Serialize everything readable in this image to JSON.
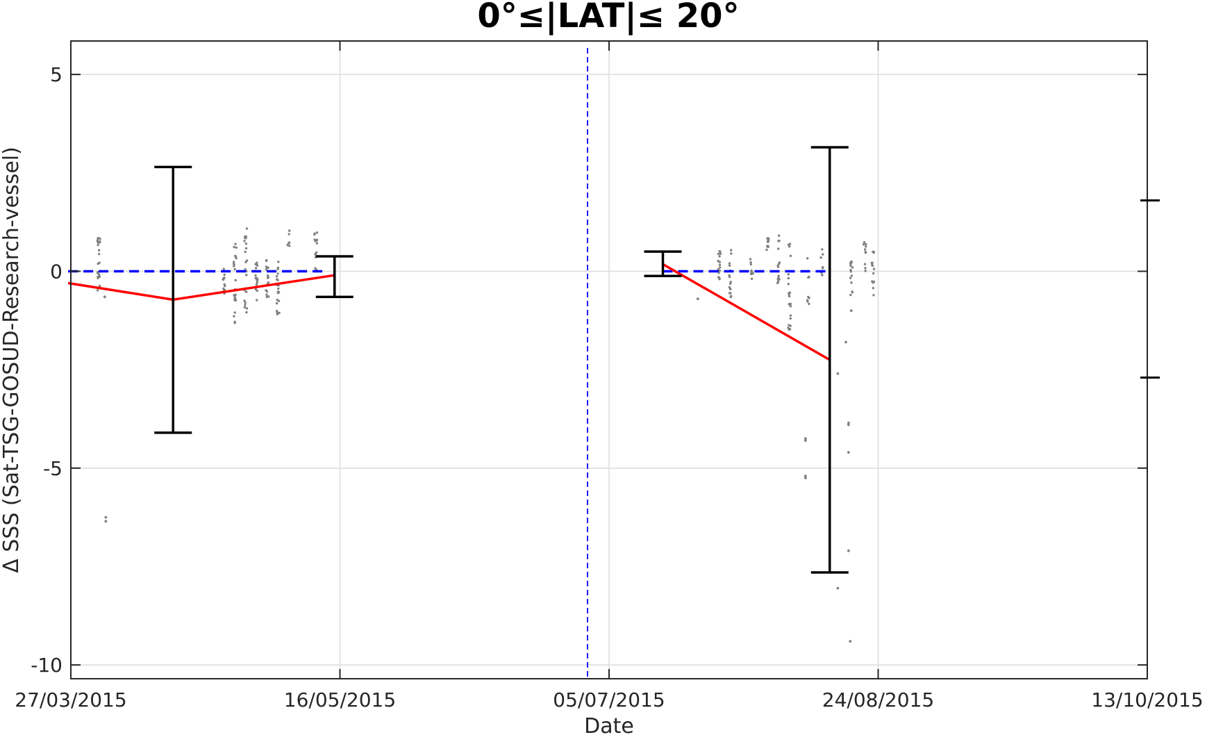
{
  "chart_data": {
    "type": "scatter",
    "title": "0°≤|LAT|≤ 20°",
    "xlabel": "Date",
    "ylabel": "Δ SSS (Sat-TSG-GOSUD-Research-vessel)",
    "x_unit": "days since 27/03/2015",
    "xlim": [
      0,
      200
    ],
    "ylim": [
      -10.35,
      5.85
    ],
    "grid": true,
    "x_ticks": [
      {
        "value": 0,
        "label": "27/03/2015"
      },
      {
        "value": 50,
        "label": "16/05/2015"
      },
      {
        "value": 100,
        "label": "05/07/2015"
      },
      {
        "value": 150,
        "label": "24/08/2015"
      },
      {
        "value": 200,
        "label": "13/10/2015"
      }
    ],
    "y_ticks": [
      {
        "value": 5,
        "label": "5"
      },
      {
        "value": 0,
        "label": "0"
      },
      {
        "value": -5,
        "label": "-5"
      },
      {
        "value": -10,
        "label": "-10"
      }
    ],
    "divider_x": 96,
    "right_axis_ticks": [
      1.8,
      -2.7
    ],
    "colors": {
      "points": "#808080",
      "mean": "#ff0000",
      "zero": "#0000ff",
      "errorbar": "#000000"
    },
    "series": [
      {
        "kind": "mean",
        "segments": [
          [
            [
              -0.5,
              -0.3
            ],
            [
              19,
              -0.72
            ],
            [
              49,
              -0.1
            ]
          ],
          [
            [
              110,
              0.18
            ],
            [
              141,
              -2.25
            ]
          ]
        ]
      },
      {
        "kind": "zero-reference",
        "segments": [
          [
            [
              -0.5,
              0
            ],
            [
              47,
              0
            ]
          ],
          [
            [
              110,
              0
            ],
            [
              141,
              0
            ]
          ]
        ]
      },
      {
        "kind": "errorbars",
        "points": [
          {
            "x": 19,
            "low": -4.1,
            "high": 2.65
          },
          {
            "x": 49,
            "low": -0.65,
            "high": 0.38
          },
          {
            "x": 110,
            "low": -0.12,
            "high": 0.5
          },
          {
            "x": 141,
            "low": -7.65,
            "high": 3.15
          }
        ]
      },
      {
        "kind": "observations",
        "clusters": [
          {
            "x": 5.2,
            "y0": -0.5,
            "y1": 0.85,
            "n": 24
          },
          {
            "x": 28.5,
            "y0": -0.6,
            "y1": 0.1,
            "n": 14
          },
          {
            "x": 30.5,
            "y0": -1.35,
            "y1": 0.85,
            "n": 26
          },
          {
            "x": 32.5,
            "y0": -1.1,
            "y1": 1.1,
            "n": 26
          },
          {
            "x": 34.5,
            "y0": -0.8,
            "y1": 0.3,
            "n": 18
          },
          {
            "x": 36.5,
            "y0": -0.7,
            "y1": 0.4,
            "n": 18
          },
          {
            "x": 38.5,
            "y0": -1.1,
            "y1": 0.3,
            "n": 20
          },
          {
            "x": 40.5,
            "y0": 0.6,
            "y1": 1.15,
            "n": 6
          },
          {
            "x": 45.5,
            "y0": 0.0,
            "y1": 1.05,
            "n": 14
          },
          {
            "x": 120.5,
            "y0": -0.3,
            "y1": 0.55,
            "n": 16
          },
          {
            "x": 122.5,
            "y0": -0.7,
            "y1": 0.55,
            "n": 16
          },
          {
            "x": 126.5,
            "y0": -0.2,
            "y1": 0.35,
            "n": 10
          },
          {
            "x": 129.5,
            "y0": 0.2,
            "y1": 0.85,
            "n": 10
          },
          {
            "x": 131.5,
            "y0": -0.3,
            "y1": 0.95,
            "n": 16
          },
          {
            "x": 133.5,
            "y0": -1.6,
            "y1": 0.75,
            "n": 22
          },
          {
            "x": 137,
            "y0": -1.15,
            "y1": 0.4,
            "n": 8
          },
          {
            "x": 139.5,
            "y0": -0.1,
            "y1": 0.6,
            "n": 8
          },
          {
            "x": 145,
            "y0": -0.7,
            "y1": 0.3,
            "n": 14
          },
          {
            "x": 147.5,
            "y0": 0.0,
            "y1": 0.75,
            "n": 10
          },
          {
            "x": 149,
            "y0": -0.7,
            "y1": 0.55,
            "n": 14
          }
        ],
        "points": [
          [
            6.5,
            -6.25
          ],
          [
            6.5,
            -6.35
          ],
          [
            6.3,
            -0.65
          ],
          [
            116.5,
            -0.7
          ],
          [
            136.5,
            -4.25
          ],
          [
            136.5,
            -4.3
          ],
          [
            136.5,
            -5.2
          ],
          [
            136.5,
            -5.25
          ],
          [
            142.5,
            -2.6
          ],
          [
            142.5,
            -8.05
          ],
          [
            144,
            -1.8
          ],
          [
            144.5,
            -7.1
          ],
          [
            144.5,
            -3.85
          ],
          [
            144.5,
            -3.9
          ],
          [
            144.5,
            -4.6
          ],
          [
            144.8,
            -9.4
          ],
          [
            145,
            -1.0
          ]
        ]
      }
    ]
  }
}
